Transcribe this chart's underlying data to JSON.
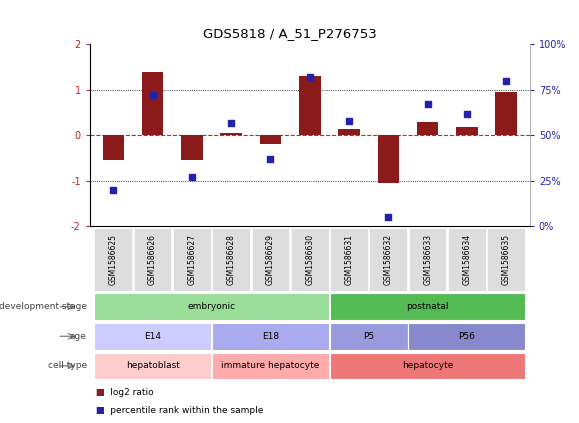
{
  "title": "GDS5818 / A_51_P276753",
  "samples": [
    "GSM1586625",
    "GSM1586626",
    "GSM1586627",
    "GSM1586628",
    "GSM1586629",
    "GSM1586630",
    "GSM1586631",
    "GSM1586632",
    "GSM1586633",
    "GSM1586634",
    "GSM1586635"
  ],
  "log2_ratio": [
    -0.55,
    1.4,
    -0.55,
    0.05,
    -0.2,
    1.3,
    0.15,
    -1.05,
    0.3,
    0.18,
    0.95
  ],
  "percentile": [
    20,
    72,
    27,
    57,
    37,
    82,
    58,
    5,
    67,
    62,
    80
  ],
  "ylim_left": [
    -2,
    2
  ],
  "bar_color": "#8B1A1A",
  "dot_color": "#2222AA",
  "zero_line_color": "#CC2222",
  "left_ytick_color": "#CC2222",
  "right_ytick_color": "#2222AA",
  "ann_rows": [
    {
      "label": "development stage",
      "segments": [
        {
          "start": 0,
          "end": 6,
          "color": "#99DD99",
          "text": "embryonic"
        },
        {
          "start": 6,
          "end": 11,
          "color": "#55BB55",
          "text": "postnatal"
        }
      ]
    },
    {
      "label": "age",
      "segments": [
        {
          "start": 0,
          "end": 3,
          "color": "#CCCCFF",
          "text": "E14"
        },
        {
          "start": 3,
          "end": 6,
          "color": "#AAAAEE",
          "text": "E18"
        },
        {
          "start": 6,
          "end": 8,
          "color": "#9999DD",
          "text": "P5"
        },
        {
          "start": 8,
          "end": 11,
          "color": "#8888CC",
          "text": "P56"
        }
      ]
    },
    {
      "label": "cell type",
      "segments": [
        {
          "start": 0,
          "end": 3,
          "color": "#FFCCCC",
          "text": "hepatoblast"
        },
        {
          "start": 3,
          "end": 6,
          "color": "#FFAAAA",
          "text": "immature hepatocyte"
        },
        {
          "start": 6,
          "end": 11,
          "color": "#EE7777",
          "text": "hepatocyte"
        }
      ]
    }
  ],
  "legend_log2_color": "#8B1A1A",
  "legend_pct_color": "#2222AA"
}
